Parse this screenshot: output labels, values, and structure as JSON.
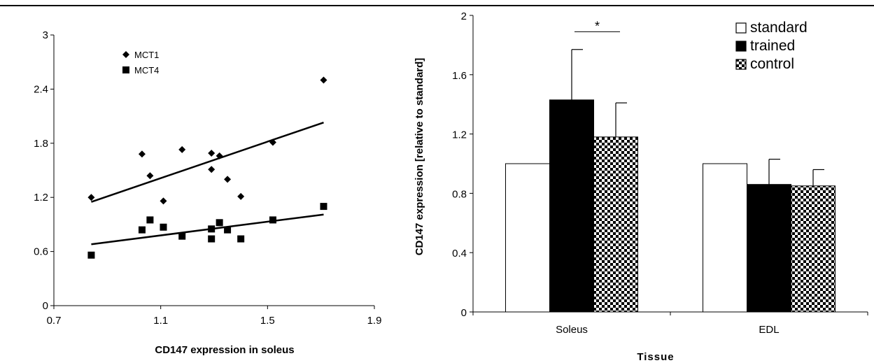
{
  "chart_data": [
    {
      "type": "scatter",
      "xlabel": "CD147 expression in soleus",
      "ylabel": "",
      "xlim": [
        0.7,
        1.9
      ],
      "ylim": [
        0,
        3
      ],
      "xticks": [
        "0.7",
        "1.1",
        "1.5",
        "1.9"
      ],
      "yticks": [
        "0",
        "0.6",
        "1.2",
        "1.8",
        "2.4",
        "3"
      ],
      "legend_position": "top-left",
      "series": [
        {
          "name": "MCT1",
          "marker": "diamond",
          "color": "#000000",
          "points": [
            [
              0.84,
              1.2
            ],
            [
              1.03,
              1.68
            ],
            [
              1.06,
              1.44
            ],
            [
              1.11,
              1.16
            ],
            [
              1.18,
              1.73
            ],
            [
              1.29,
              1.69
            ],
            [
              1.29,
              1.51
            ],
            [
              1.32,
              1.66
            ],
            [
              1.35,
              1.4
            ],
            [
              1.4,
              1.21
            ],
            [
              1.52,
              1.81
            ],
            [
              1.71,
              2.5
            ]
          ],
          "trend": [
            [
              0.84,
              1.15
            ],
            [
              1.71,
              2.03
            ]
          ]
        },
        {
          "name": "MCT4",
          "marker": "square",
          "color": "#000000",
          "points": [
            [
              0.84,
              0.56
            ],
            [
              1.03,
              0.84
            ],
            [
              1.06,
              0.95
            ],
            [
              1.11,
              0.87
            ],
            [
              1.18,
              0.77
            ],
            [
              1.29,
              0.85
            ],
            [
              1.29,
              0.74
            ],
            [
              1.32,
              0.92
            ],
            [
              1.35,
              0.84
            ],
            [
              1.4,
              0.74
            ],
            [
              1.52,
              0.95
            ],
            [
              1.71,
              1.1
            ]
          ],
          "trend": [
            [
              0.84,
              0.68
            ],
            [
              1.71,
              1.01
            ]
          ]
        }
      ]
    },
    {
      "type": "bar",
      "xlabel": "Tissue",
      "ylabel": "CD147 expression [relative to standard]",
      "ylim": [
        0,
        2
      ],
      "yticks": [
        "0",
        "0.4",
        "0.8",
        "1.2",
        "1.6",
        "2"
      ],
      "categories": [
        "Soleus",
        "EDL"
      ],
      "legend_position": "top-right",
      "series": [
        {
          "name": "standard",
          "fill": "white",
          "values": [
            1.0,
            1.0
          ],
          "errors": [
            0,
            0
          ]
        },
        {
          "name": "trained",
          "fill": "black",
          "values": [
            1.43,
            0.86
          ],
          "errors": [
            0.34,
            0.17
          ]
        },
        {
          "name": "control",
          "fill": "checker",
          "values": [
            1.18,
            0.85
          ],
          "errors": [
            0.23,
            0.11
          ]
        }
      ],
      "annotations": [
        {
          "text": "*",
          "category": "Soleus",
          "from_series": 1,
          "to_series": 2,
          "y": 1.89
        }
      ]
    }
  ]
}
